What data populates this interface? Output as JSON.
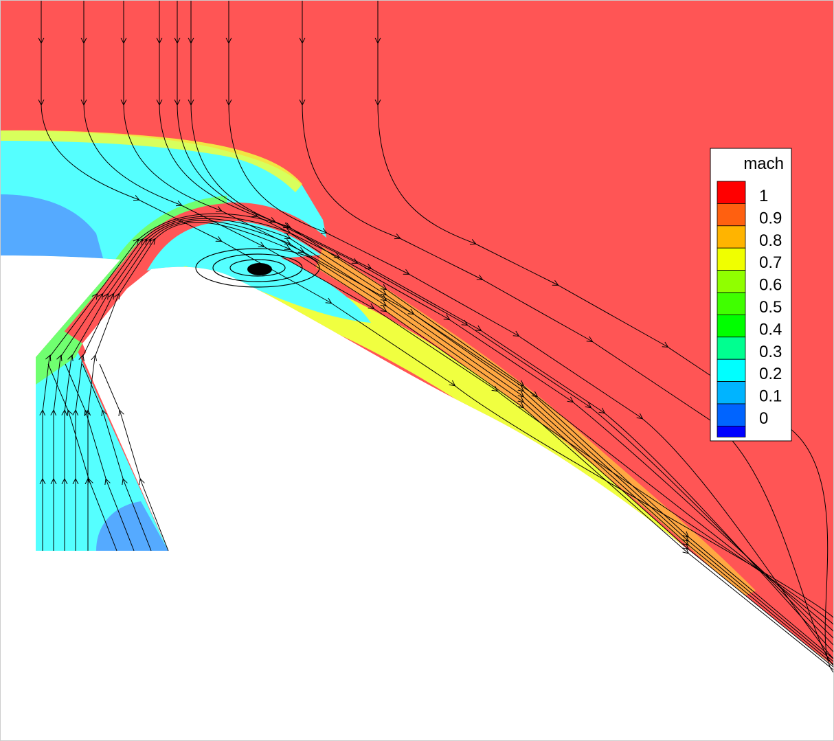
{
  "chart_data": {
    "type": "heatmap",
    "variable": "mach",
    "legend": {
      "title": "mach",
      "placement": "right",
      "levels": [
        {
          "label": "1",
          "value": 1.0,
          "color": "#ff0000"
        },
        {
          "label": "0.9",
          "value": 0.9,
          "color": "#ff6010"
        },
        {
          "label": "0.8",
          "value": 0.8,
          "color": "#ffb400"
        },
        {
          "label": "0.7",
          "value": 0.7,
          "color": "#f0ff00"
        },
        {
          "label": "0.6",
          "value": 0.6,
          "color": "#90ff00"
        },
        {
          "label": "0.5",
          "value": 0.5,
          "color": "#40ff00"
        },
        {
          "label": "0.4",
          "value": 0.4,
          "color": "#00ff00"
        },
        {
          "label": "0.3",
          "value": 0.3,
          "color": "#00ff90"
        },
        {
          "label": "0.2",
          "value": 0.2,
          "color": "#00ffff"
        },
        {
          "label": "0.1",
          "value": 0.1,
          "color": "#00b4ff"
        },
        {
          "label": "0",
          "value": 0.0,
          "color": "#0064ff"
        }
      ],
      "bottom_color": "#0000ff"
    },
    "colormap_range": [
      0,
      1
    ],
    "regions": [
      {
        "name": "freestream",
        "mach": 0.95
      },
      {
        "name": "upper-subsonic-band",
        "mach": 0.25
      },
      {
        "name": "upper-slow-pocket",
        "mach": 0.15
      },
      {
        "name": "jet-channel",
        "mach": 0.95
      },
      {
        "name": "recirculation-vortex",
        "mach": 0.2
      },
      {
        "name": "wall-boundary-layer",
        "mach": 0.75
      },
      {
        "name": "inlet-duct",
        "mach": 0.25
      },
      {
        "name": "inlet-slow-pocket",
        "mach": 0.15
      }
    ],
    "streamlines": true,
    "grid": false
  }
}
